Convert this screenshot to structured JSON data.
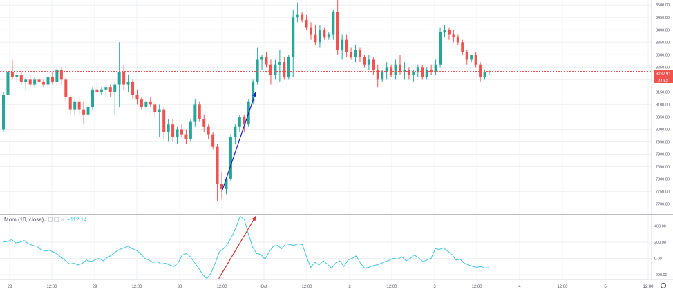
{
  "colors": {
    "up": "#26a69a",
    "down": "#ef5350",
    "grid": "#eef0f3",
    "axis_text": "#50535e",
    "separator": "#787b86",
    "price_line": "#ef5350",
    "momentum": "#3fc3de",
    "arrow_up": "#1c1ccf",
    "arrow_mom": "#d32f2f"
  },
  "price_panel": {
    "last_price_label": "8232.91",
    "countdown_label": "04:52"
  },
  "momentum_panel": {
    "legend_name": "Mom (10, close)",
    "legend_value": "−112.14",
    "y_ticks": [
      "400.00",
      "200.00",
      "0.00",
      "-200.00"
    ]
  },
  "chart_data": [
    {
      "type": "candlestick",
      "title": "",
      "xlabel": "",
      "ylabel": "",
      "ylim": [
        7660,
        8520
      ],
      "y_ticks": [
        8500,
        8450,
        8400,
        8350,
        8300,
        8250,
        8200,
        8150,
        8100,
        8050,
        8000,
        7950,
        7900,
        7850,
        7800,
        7750,
        7700
      ],
      "y_tick_labels": [
        "8500.00",
        "8450.00",
        "8400.00",
        "8350.00",
        "8300.00",
        "8250.00",
        "8200.00",
        "8150.00",
        "8100.00",
        "8050.00",
        "8000.00",
        "7950.00",
        "7900.00",
        "7850.00",
        "7800.00",
        "7750.00",
        "7700.00"
      ],
      "last_price": 8232.91,
      "x_labels": [
        "28",
        "12:00",
        "29",
        "12:00",
        "30",
        "12:00",
        "Oct",
        "12:00",
        "2",
        "12:00",
        "3",
        "12:00",
        "4",
        "12:00",
        "5",
        "12:00"
      ],
      "grid": true,
      "candles_ohlc": [
        [
          8000,
          8150,
          7990,
          8140
        ],
        [
          8140,
          8240,
          8100,
          8230
        ],
        [
          8230,
          8280,
          8200,
          8210
        ],
        [
          8210,
          8240,
          8190,
          8220
        ],
        [
          8220,
          8230,
          8180,
          8190
        ],
        [
          8190,
          8210,
          8160,
          8200
        ],
        [
          8200,
          8220,
          8170,
          8180
        ],
        [
          8180,
          8210,
          8170,
          8200
        ],
        [
          8200,
          8210,
          8180,
          8190
        ],
        [
          8190,
          8200,
          8170,
          8180
        ],
        [
          8180,
          8220,
          8170,
          8210
        ],
        [
          8210,
          8230,
          8180,
          8190
        ],
        [
          8190,
          8250,
          8180,
          8240
        ],
        [
          8240,
          8250,
          8180,
          8200
        ],
        [
          8200,
          8210,
          8110,
          8130
        ],
        [
          8130,
          8140,
          8060,
          8080
        ],
        [
          8080,
          8120,
          8060,
          8110
        ],
        [
          8110,
          8130,
          8060,
          8080
        ],
        [
          8080,
          8110,
          8020,
          8060
        ],
        [
          8060,
          8100,
          8040,
          8090
        ],
        [
          8090,
          8170,
          8080,
          8160
        ],
        [
          8160,
          8190,
          8130,
          8150
        ],
        [
          8150,
          8170,
          8140,
          8160
        ],
        [
          8160,
          8180,
          8130,
          8170
        ],
        [
          8170,
          8180,
          8130,
          8150
        ],
        [
          8150,
          8190,
          8060,
          8180
        ],
        [
          8180,
          8350,
          8090,
          8230
        ],
        [
          8230,
          8260,
          8160,
          8180
        ],
        [
          8180,
          8220,
          8150,
          8190
        ],
        [
          8190,
          8200,
          8120,
          8140
        ],
        [
          8140,
          8160,
          8100,
          8120
        ],
        [
          8120,
          8130,
          8080,
          8090
        ],
        [
          8090,
          8120,
          8060,
          8110
        ],
        [
          8110,
          8130,
          8090,
          8100
        ],
        [
          8100,
          8110,
          8050,
          8070
        ],
        [
          8070,
          8100,
          7970,
          8080
        ],
        [
          8080,
          8090,
          7960,
          7990
        ],
        [
          7990,
          8040,
          7950,
          8020
        ],
        [
          8020,
          8040,
          7950,
          7970
        ],
        [
          7970,
          8010,
          7940,
          8000
        ],
        [
          8000,
          8020,
          7970,
          7980
        ],
        [
          7980,
          8000,
          7940,
          7960
        ],
        [
          7960,
          8040,
          7950,
          8030
        ],
        [
          8030,
          8120,
          8010,
          8100
        ],
        [
          8100,
          8110,
          8030,
          8040
        ],
        [
          8040,
          8060,
          7990,
          8010
        ],
        [
          8010,
          8020,
          7960,
          7980
        ],
        [
          7980,
          7990,
          7920,
          7930
        ],
        [
          7930,
          7940,
          7710,
          7780
        ],
        [
          7780,
          7830,
          7720,
          7760
        ],
        [
          7760,
          7810,
          7740,
          7800
        ],
        [
          7800,
          7980,
          7790,
          7970
        ],
        [
          7970,
          8020,
          7940,
          8010
        ],
        [
          8010,
          8060,
          7990,
          8050
        ],
        [
          8050,
          8060,
          7990,
          8020
        ],
        [
          8020,
          8120,
          8010,
          8110
        ],
        [
          8110,
          8200,
          8100,
          8190
        ],
        [
          8190,
          8330,
          8180,
          8280
        ],
        [
          8280,
          8300,
          8240,
          8290
        ],
        [
          8290,
          8310,
          8250,
          8260
        ],
        [
          8260,
          8280,
          8180,
          8220
        ],
        [
          8220,
          8280,
          8200,
          8260
        ],
        [
          8260,
          8320,
          8190,
          8270
        ],
        [
          8270,
          8290,
          8200,
          8210
        ],
        [
          8210,
          8300,
          8200,
          8290
        ],
        [
          8290,
          8480,
          8210,
          8450
        ],
        [
          8450,
          8510,
          8430,
          8460
        ],
        [
          8460,
          8470,
          8430,
          8440
        ],
        [
          8440,
          8460,
          8400,
          8410
        ],
        [
          8410,
          8430,
          8360,
          8380
        ],
        [
          8380,
          8420,
          8340,
          8350
        ],
        [
          8350,
          8420,
          8330,
          8400
        ],
        [
          8400,
          8410,
          8360,
          8370
        ],
        [
          8370,
          8390,
          8360,
          8380
        ],
        [
          8380,
          8480,
          8360,
          8470
        ],
        [
          8470,
          8520,
          8300,
          8320
        ],
        [
          8320,
          8380,
          8280,
          8360
        ],
        [
          8360,
          8380,
          8290,
          8310
        ],
        [
          8310,
          8330,
          8280,
          8290
        ],
        [
          8290,
          8340,
          8270,
          8320
        ],
        [
          8320,
          8330,
          8270,
          8290
        ],
        [
          8290,
          8300,
          8250,
          8260
        ],
        [
          8260,
          8300,
          8240,
          8280
        ],
        [
          8280,
          8290,
          8220,
          8240
        ],
        [
          8240,
          8260,
          8170,
          8200
        ],
        [
          8200,
          8240,
          8190,
          8230
        ],
        [
          8230,
          8270,
          8200,
          8250
        ],
        [
          8250,
          8260,
          8210,
          8220
        ],
        [
          8220,
          8280,
          8200,
          8260
        ],
        [
          8260,
          8300,
          8220,
          8230
        ],
        [
          8230,
          8270,
          8200,
          8240
        ],
        [
          8240,
          8250,
          8200,
          8220
        ],
        [
          8220,
          8240,
          8190,
          8230
        ],
        [
          8230,
          8260,
          8210,
          8250
        ],
        [
          8250,
          8260,
          8200,
          8210
        ],
        [
          8210,
          8250,
          8200,
          8240
        ],
        [
          8240,
          8260,
          8220,
          8230
        ],
        [
          8230,
          8280,
          8220,
          8260
        ],
        [
          8260,
          8410,
          8250,
          8390
        ],
        [
          8390,
          8420,
          8370,
          8400
        ],
        [
          8400,
          8410,
          8360,
          8380
        ],
        [
          8380,
          8400,
          8350,
          8370
        ],
        [
          8370,
          8380,
          8340,
          8350
        ],
        [
          8350,
          8360,
          8300,
          8310
        ],
        [
          8310,
          8320,
          8260,
          8280
        ],
        [
          8280,
          8300,
          8270,
          8300
        ],
        [
          8300,
          8310,
          8250,
          8260
        ],
        [
          8260,
          8270,
          8190,
          8210
        ],
        [
          8210,
          8240,
          8200,
          8230
        ],
        [
          8230,
          8240,
          8220,
          8232.91
        ]
      ]
    },
    {
      "type": "line",
      "title": "Mom (10, close)",
      "ylim": [
        -260,
        540
      ],
      "y_ticks": [
        400,
        200,
        0,
        -200
      ],
      "last_value": -112.14,
      "values": [
        200,
        210,
        230,
        190,
        200,
        220,
        180,
        160,
        150,
        110,
        90,
        100,
        80,
        50,
        10,
        -30,
        -70,
        -60,
        -80,
        -60,
        -20,
        -40,
        -20,
        0,
        -30,
        10,
        40,
        80,
        110,
        130,
        150,
        120,
        100,
        60,
        0,
        -20,
        -50,
        -40,
        -70,
        -60,
        -80,
        -100,
        -60,
        40,
        60,
        20,
        -50,
        -120,
        -200,
        -250,
        -180,
        -60,
        80,
        120,
        180,
        270,
        380,
        520,
        480,
        300,
        140,
        60,
        50,
        -10,
        80,
        150,
        160,
        120,
        180,
        170,
        160,
        180,
        170,
        20,
        -110,
        -50,
        -80,
        -30,
        -70,
        -120,
        -60,
        -30,
        -100,
        -20,
        0,
        30,
        -60,
        -120,
        -110,
        -90,
        -80,
        -60,
        -40,
        -20,
        0,
        -10,
        20,
        -30,
        0,
        40,
        10,
        -40,
        -20,
        0,
        120,
        110,
        130,
        90,
        50,
        -20,
        -10,
        -60,
        -80,
        -100,
        -110,
        -100,
        -120,
        -112.14
      ]
    }
  ]
}
